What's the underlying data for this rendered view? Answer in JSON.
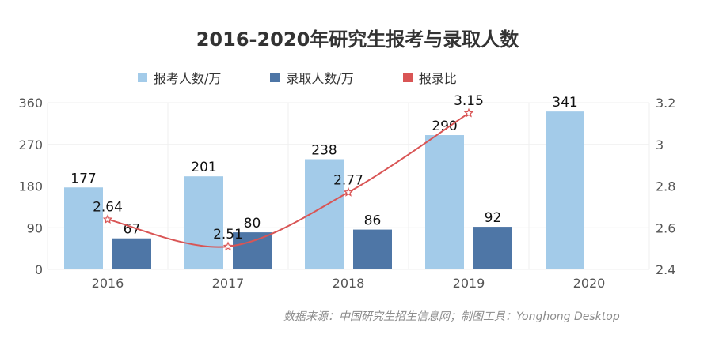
{
  "title": "2016-2020年研究生报考与录取人数",
  "source": "数据来源：中国研究生招生信息网；制图工具：Yonghong Desktop",
  "colors": {
    "applicants": "#a3cbe9",
    "admitted": "#4e76a6",
    "ratio": "#d95555",
    "grid": "#efefef"
  },
  "chart_data": {
    "type": "bar",
    "categories": [
      "2016",
      "2017",
      "2018",
      "2019",
      "2020"
    ],
    "series": [
      {
        "name": "报考人数/万",
        "kind": "bar",
        "axis": "left",
        "values": [
          177,
          201,
          238,
          290,
          341
        ]
      },
      {
        "name": "录取人数/万",
        "kind": "bar",
        "axis": "left",
        "values": [
          67,
          80,
          86,
          92,
          null
        ]
      },
      {
        "name": "报录比",
        "kind": "line",
        "axis": "right",
        "values": [
          2.64,
          2.51,
          2.77,
          3.15,
          null
        ]
      }
    ],
    "data_labels": {
      "applicants": [
        "177",
        "201",
        "238",
        "290",
        "341"
      ],
      "admitted": [
        "67",
        "80",
        "86",
        "92"
      ],
      "ratio": [
        "2.64",
        "2.51",
        "2.77",
        "3.15"
      ]
    },
    "y_left": {
      "lim": [
        0,
        360
      ],
      "ticks": [
        0,
        90,
        180,
        270,
        360
      ],
      "tick_labels": [
        "0",
        "90",
        "180",
        "270",
        "360"
      ]
    },
    "y_right": {
      "lim": [
        2.4,
        3.2
      ],
      "ticks": [
        2.4,
        2.6,
        2.8,
        3.0,
        3.2
      ],
      "tick_labels": [
        "2.4",
        "2.6",
        "2.8",
        "3",
        "3.2"
      ]
    },
    "legend_position": "top",
    "grid": true
  }
}
